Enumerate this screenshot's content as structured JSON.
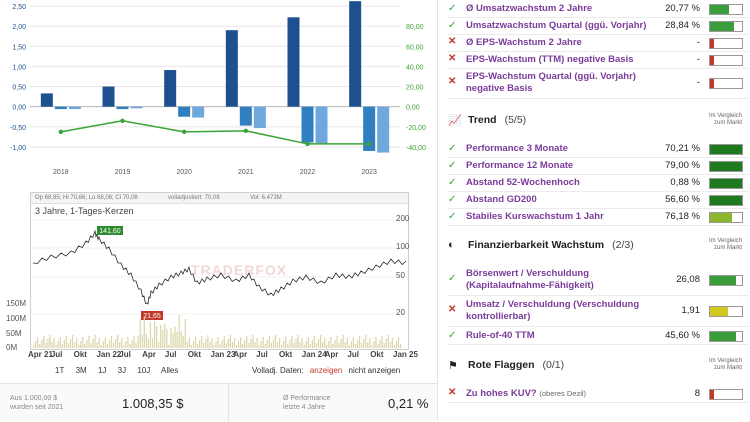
{
  "growth_chart": {
    "left_ticks": [
      "2,50",
      "2,00",
      "1,50",
      "1,00",
      "0,50",
      "0,00",
      "-0,50",
      "-1,00"
    ],
    "right_ticks": [
      "80,00",
      "60,00",
      "40,00",
      "20,00",
      "0,00",
      "-20,00",
      "-40,00"
    ],
    "years": [
      "2018",
      "2019",
      "2020",
      "2021",
      "2022",
      "2023"
    ]
  },
  "chart_data": {
    "type": "bar",
    "categories": [
      "2018",
      "2019",
      "2020",
      "2021",
      "2022",
      "2023"
    ],
    "ylim": [
      -1.2,
      2.6
    ],
    "y2lim": [
      -40,
      80
    ],
    "series": [
      {
        "values": [
          0.33,
          0.5,
          0.91,
          1.9,
          2.22,
          2.62
        ]
      },
      {
        "values": [
          -0.06,
          -0.06,
          -0.25,
          -0.47,
          -0.89,
          -1.1
        ]
      },
      {
        "values": [
          -0.06,
          -0.04,
          -0.27,
          -0.53,
          -0.91,
          -1.14
        ]
      },
      {
        "values": [
          -25,
          -14,
          -25,
          -24,
          -37,
          -37
        ]
      }
    ],
    "colors": [
      "#1e4f8f",
      "#2f7fc1",
      "#6fa8dc",
      "#3aa335"
    ]
  },
  "stock_chart": {
    "legend": {
      "ohlc": "Op 68,85; Hi 70,66; Lo 68,06; Cl 70,08",
      "adjusted": "volladjustiert: 70,08",
      "volume": "Vol: 6.473M"
    },
    "title": "3 Jahre, 1-Tages-Kerzen",
    "watermark": "TRADERFOX",
    "high_label": "141,60",
    "low_label": "21,65",
    "price_ticks": [
      "200",
      "100",
      "50",
      "20"
    ],
    "vol_ticks": [
      "150M",
      "100M",
      "50M",
      "0M"
    ],
    "x_labels": [
      "Apr 21",
      "Jul",
      "Okt",
      "Jan 22",
      "Jul",
      "Apr",
      "Jul",
      "Okt",
      "Jan 23",
      "Apr",
      "Jul",
      "Okt",
      "Jan 24",
      "Apr",
      "Jul",
      "Okt",
      "Jan 25"
    ],
    "ranges": [
      "1T",
      "3M",
      "1J",
      "3J",
      "10J",
      "Alles"
    ],
    "volladj": {
      "label": "Volladj. Daten:",
      "show": "anzeigen",
      "hide": "nicht anzeigen"
    }
  },
  "summary": {
    "invest_label_1": "Aus 1.000,00 $",
    "invest_label_2": "wurden seit 2021",
    "invest_value": "1.008,35 $",
    "perf_label_1": "Ø Performance",
    "perf_label_2": "letzte 4 Jahre",
    "perf_value": "0,21 %"
  },
  "growth_rows": [
    {
      "status": "ok",
      "label": "Ø Umsatzwachstum 2 Jahre",
      "value": "20,77 %",
      "level": 0.6,
      "color": "#3a9c3a"
    },
    {
      "status": "ok",
      "label": "Umsatzwachstum Quartal (ggü. Vorjahr)",
      "value": "28,84 %",
      "level": 0.75,
      "color": "#3a9c3a"
    },
    {
      "status": "bad",
      "label": "Ø EPS-Wachstum 2 Jahre",
      "value": "-",
      "level": 0.12,
      "color": "#c0392b"
    },
    {
      "status": "bad",
      "label": "EPS-Wachstum (TTM) negative Basis",
      "value": "-",
      "level": 0.12,
      "color": "#c0392b"
    },
    {
      "status": "bad",
      "label1": "EPS-Wachstum Quartal (ggü. Vorjahr)",
      "label2": "negative Basis",
      "value": "-",
      "level": 0.12,
      "color": "#c0392b"
    }
  ],
  "trend": {
    "title": "Trend",
    "count": "(5/5)",
    "compare": [
      "Im Vergleich",
      "zum Markt"
    ],
    "rows": [
      {
        "label": "Performance 3 Monate",
        "value": "70,21 %",
        "level": 1.0,
        "color": "#1f7a1f"
      },
      {
        "label": "Performance 12 Monate",
        "value": "79,00 %",
        "level": 1.0,
        "color": "#1f7a1f"
      },
      {
        "label": "Abstand 52-Wochenhoch",
        "value": "0,88 %",
        "level": 1.0,
        "color": "#1f7a1f"
      },
      {
        "label": "Abstand GD200",
        "value": "56,60 %",
        "level": 1.0,
        "color": "#1f7a1f"
      },
      {
        "label": "Stabiles Kurswachstum 1 Jahr",
        "value": "76,18 %",
        "level": 0.7,
        "color": "#8db82e"
      }
    ]
  },
  "finanz": {
    "title": "Finanzierbarkeit Wachstum",
    "count": "(2/3)",
    "compare": [
      "Im Vergleich",
      "zum Markt"
    ],
    "rows": [
      {
        "status": "ok",
        "label1": "Börsenwert / Verschuldung",
        "label2": "(Kapitalaufnahme-Fähigkeit)",
        "value": "26,08",
        "level": 0.8,
        "color": "#3a9c3a"
      },
      {
        "status": "bad",
        "label1": "Umsatz / Verschuldung (Verschuldung",
        "label2": "kontrollierbar)",
        "value": "1,91",
        "level": 0.55,
        "color": "#d4c81e"
      },
      {
        "status": "ok",
        "label": "Rule-of-40 TTM",
        "value": "45,60 %",
        "level": 0.8,
        "color": "#3a9c3a"
      }
    ]
  },
  "flags": {
    "title": "Rote Flaggen",
    "count": "(0/1)",
    "compare": [
      "Im Vergleich",
      "zum Markt"
    ],
    "rows": [
      {
        "status": "bad",
        "label": "Zu hohes KUV?",
        "suffix": "(oberes Dezil)",
        "value": "8",
        "level": 0.12,
        "color": "#c0392b"
      }
    ]
  }
}
